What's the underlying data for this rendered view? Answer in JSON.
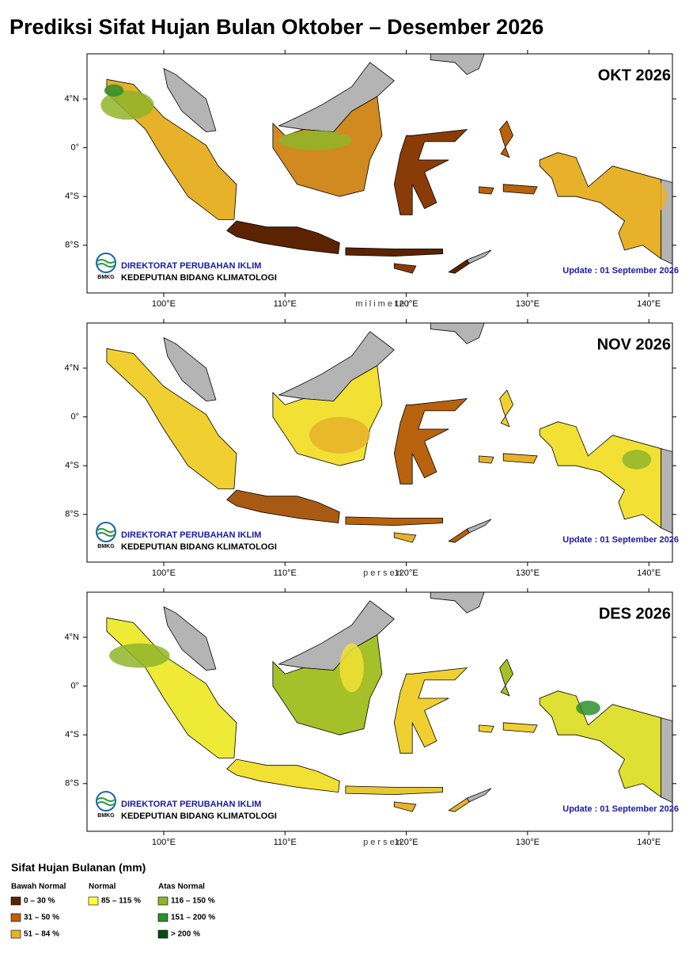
{
  "header": {
    "title": "Prediksi Sifat Hujan Bulan Oktober – Desember 2026"
  },
  "panels": [
    {
      "label": "OKT 2026",
      "unit_label": "milimeter"
    },
    {
      "label": "NOV 2026",
      "unit_label": "persen"
    },
    {
      "label": "DES 2026",
      "unit_label": "persen"
    }
  ],
  "institution": {
    "line1": "DIREKTORAT PERUBAHAN IKLIM",
    "line2": "KEDEPUTIAN BIDANG KLIMATOLOGI",
    "logo": "BMKG"
  },
  "update": "Update : 01 September  2026",
  "axes": {
    "x_labels": [
      "100°E",
      "110°E",
      "120°E",
      "130°E",
      "140°E"
    ],
    "y_labels": [
      "4°N",
      "0°",
      "4°S",
      "8°S"
    ]
  },
  "legend": {
    "title": "Sifat Hujan Bulanan (mm)",
    "groups": [
      {
        "name": "Bawah Normal",
        "items": [
          {
            "label": "0 – 30 %",
            "color": "#5c2300"
          },
          {
            "label": "31 – 50 %",
            "color": "#b8620e"
          },
          {
            "label": "51 – 84 %",
            "color": "#e7b12a"
          }
        ]
      },
      {
        "name": "Normal",
        "items": [
          {
            "label": "85 – 115 %",
            "color": "#ffff3a"
          }
        ]
      },
      {
        "name": "Atas Normal",
        "items": [
          {
            "label": "116 – 150 %",
            "color": "#8fb52a"
          },
          {
            "label": "151 – 200 %",
            "color": "#2f8f2e"
          },
          {
            "label": "> 200 %",
            "color": "#0a4a14"
          }
        ]
      }
    ]
  }
}
